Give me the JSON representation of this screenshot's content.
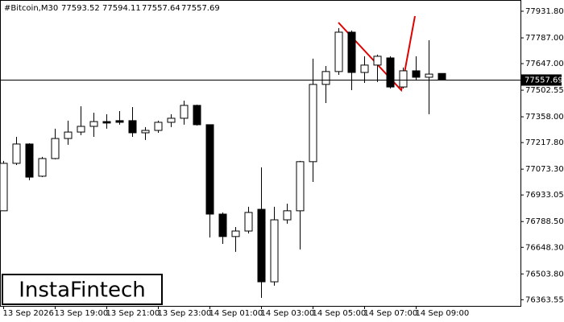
{
  "header": {
    "symbol": "#Bitcoin,M30",
    "ohlc": [
      77593.52,
      77594.11,
      77557.64,
      77557.69
    ]
  },
  "watermark": "InstaFintech",
  "chart_data": {
    "type": "candlestick",
    "categories": [
      "13 Sep 2026",
      null,
      null,
      null,
      "13 Sep 19:00",
      null,
      null,
      null,
      "13 Sep 21:00",
      null,
      null,
      null,
      "13 Sep 23:00",
      null,
      null,
      null,
      "14 Sep 01:00",
      null,
      null,
      null,
      "14 Sep 03:00",
      null,
      null,
      null,
      "14 Sep 05:00",
      null,
      null,
      null,
      "14 Sep 07:00",
      null,
      null,
      null,
      "14 Sep 09:00",
      null,
      null
    ],
    "open": [
      76847,
      77105,
      77210,
      77035,
      77131,
      77240,
      77275,
      77306,
      77332,
      77337,
      77337,
      77271,
      77284,
      77328,
      77350,
      77420,
      77315,
      76829,
      76707,
      76737,
      76855,
      76461,
      76798,
      76847,
      77114,
      77534,
      77604,
      77818,
      77599,
      77639,
      77678,
      77520,
      77608,
      77573,
      77593.52
    ],
    "high": [
      77118,
      77249,
      77214,
      77140,
      77293,
      77337,
      77415,
      77380,
      77372,
      77389,
      77411,
      77302,
      77337,
      77372,
      77446,
      77424,
      77315,
      76838,
      76759,
      76869,
      77083,
      76869,
      76886,
      77118,
      77674,
      77634,
      77840,
      77827,
      77687,
      77696,
      77687,
      77626,
      77687,
      77774,
      77594.11
    ],
    "low": [
      76847,
      77096,
      77013,
      77030,
      77127,
      77206,
      77258,
      77249,
      77293,
      77315,
      77249,
      77232,
      77271,
      77302,
      77315,
      77310,
      76702,
      76667,
      76624,
      76724,
      76374,
      76440,
      76777,
      76637,
      77004,
      77433,
      77586,
      77503,
      77542,
      77547,
      77512,
      77512,
      77555,
      77372,
      77557.64
    ],
    "close": [
      77105,
      77210,
      77030,
      77131,
      77240,
      77275,
      77306,
      77332,
      77324,
      77328,
      77271,
      77284,
      77328,
      77350,
      77420,
      77315,
      76829,
      76707,
      76737,
      76838,
      76461,
      76798,
      76847,
      77114,
      77534,
      77604,
      77818,
      77599,
      77639,
      77687,
      77520,
      77608,
      77573,
      77590,
      77557.69
    ],
    "up_color": "#ffffff",
    "down_color": "#000000",
    "current_price": 77557.69,
    "current_price_label": "77557.69",
    "ylim": [
      76330,
      77971
    ],
    "yticks": [
      {
        "value": 77931.8,
        "label": "77931.80"
      },
      {
        "value": 77787,
        "label": "77787.00"
      },
      {
        "value": 77647,
        "label": "77647.00"
      },
      {
        "value": 77502.55,
        "label": "77502.55"
      },
      {
        "value": 77358,
        "label": "77358.00"
      },
      {
        "value": 77217.8,
        "label": "77217.80"
      },
      {
        "value": 77073.3,
        "label": "77073.30"
      },
      {
        "value": 76933.05,
        "label": "76933.05"
      },
      {
        "value": 76788.5,
        "label": "76788.50"
      },
      {
        "value": 76648.3,
        "label": "76648.30"
      },
      {
        "value": 76503.8,
        "label": "76503.80"
      },
      {
        "value": 76363.55,
        "label": "76363.55"
      }
    ]
  }
}
